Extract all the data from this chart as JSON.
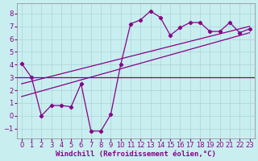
{
  "xlabel": "Windchill (Refroidissement éolien,°C)",
  "bg_color": "#c8eef0",
  "grid_color": "#b0d8da",
  "line_color": "#880088",
  "xlim": [
    -0.5,
    23.5
  ],
  "ylim": [
    -1.8,
    8.8
  ],
  "xticks": [
    0,
    1,
    2,
    3,
    4,
    5,
    6,
    7,
    8,
    9,
    10,
    11,
    12,
    13,
    14,
    15,
    16,
    17,
    18,
    19,
    20,
    21,
    22,
    23
  ],
  "yticks": [
    -1,
    0,
    1,
    2,
    3,
    4,
    5,
    6,
    7,
    8
  ],
  "data_x": [
    0,
    1,
    2,
    3,
    4,
    5,
    6,
    7,
    8,
    9,
    10,
    11,
    12,
    13,
    14,
    15,
    16,
    17,
    18,
    19,
    20,
    21,
    22,
    23
  ],
  "data_y": [
    4.1,
    3.0,
    0.0,
    0.8,
    0.8,
    0.7,
    2.5,
    -1.2,
    -1.2,
    0.1,
    4.0,
    7.2,
    7.5,
    8.2,
    7.7,
    6.3,
    6.9,
    7.3,
    7.3,
    6.6,
    6.6,
    7.3,
    6.5,
    6.8
  ],
  "hline_y": 3.0,
  "regline1_x": [
    0,
    23
  ],
  "regline1_y": [
    1.5,
    6.5
  ],
  "regline2_x": [
    0,
    23
  ],
  "regline2_y": [
    2.5,
    7.0
  ]
}
